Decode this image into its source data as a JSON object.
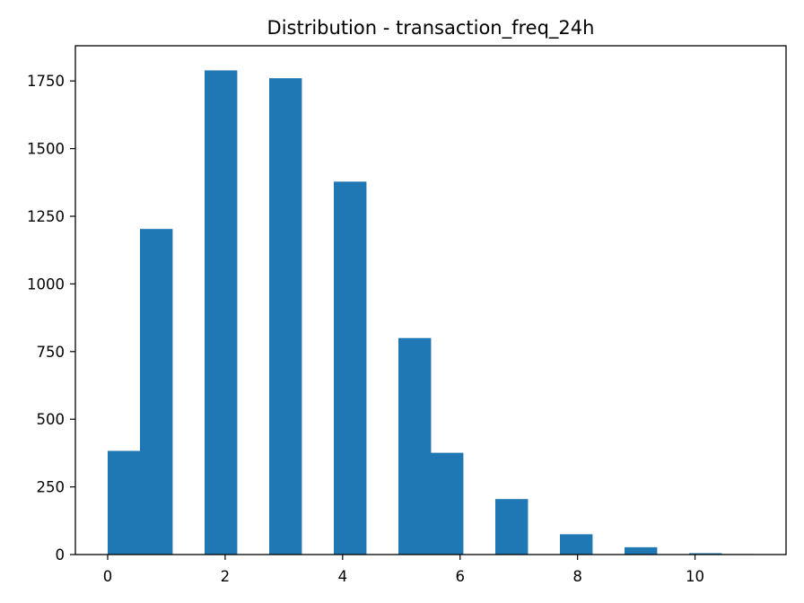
{
  "chart_data": {
    "type": "bar",
    "title": "Distribution - transaction_freq_24h",
    "xlabel": "",
    "ylabel": "",
    "xlim": [
      -0.55,
      11.55
    ],
    "ylim": [
      0,
      1880
    ],
    "grid": false,
    "bar_color": "#1f77b4",
    "bins": [
      {
        "x0": 0.0,
        "x1": 0.55,
        "value": 383
      },
      {
        "x0": 0.55,
        "x1": 1.1,
        "value": 1203
      },
      {
        "x0": 1.1,
        "x1": 1.65,
        "value": 0
      },
      {
        "x0": 1.65,
        "x1": 2.2,
        "value": 1789
      },
      {
        "x0": 2.2,
        "x1": 2.75,
        "value": 0
      },
      {
        "x0": 2.75,
        "x1": 3.3,
        "value": 1760
      },
      {
        "x0": 3.3,
        "x1": 3.85,
        "value": 0
      },
      {
        "x0": 3.85,
        "x1": 4.4,
        "value": 1378
      },
      {
        "x0": 4.4,
        "x1": 4.95,
        "value": 0
      },
      {
        "x0": 4.95,
        "x1": 5.5,
        "value": 800
      },
      {
        "x0": 5.5,
        "x1": 6.05,
        "value": 376
      },
      {
        "x0": 6.05,
        "x1": 6.6,
        "value": 0
      },
      {
        "x0": 6.6,
        "x1": 7.15,
        "value": 205
      },
      {
        "x0": 7.15,
        "x1": 7.7,
        "value": 0
      },
      {
        "x0": 7.7,
        "x1": 8.25,
        "value": 75
      },
      {
        "x0": 8.25,
        "x1": 8.8,
        "value": 0
      },
      {
        "x0": 8.8,
        "x1": 9.35,
        "value": 27
      },
      {
        "x0": 9.35,
        "x1": 9.9,
        "value": 0
      },
      {
        "x0": 9.9,
        "x1": 10.45,
        "value": 5
      },
      {
        "x0": 10.45,
        "x1": 11.0,
        "value": 2
      }
    ],
    "x_ticks": [
      0,
      2,
      4,
      6,
      8,
      10
    ],
    "y_ticks": [
      0,
      250,
      500,
      750,
      1000,
      1250,
      1500,
      1750
    ]
  }
}
